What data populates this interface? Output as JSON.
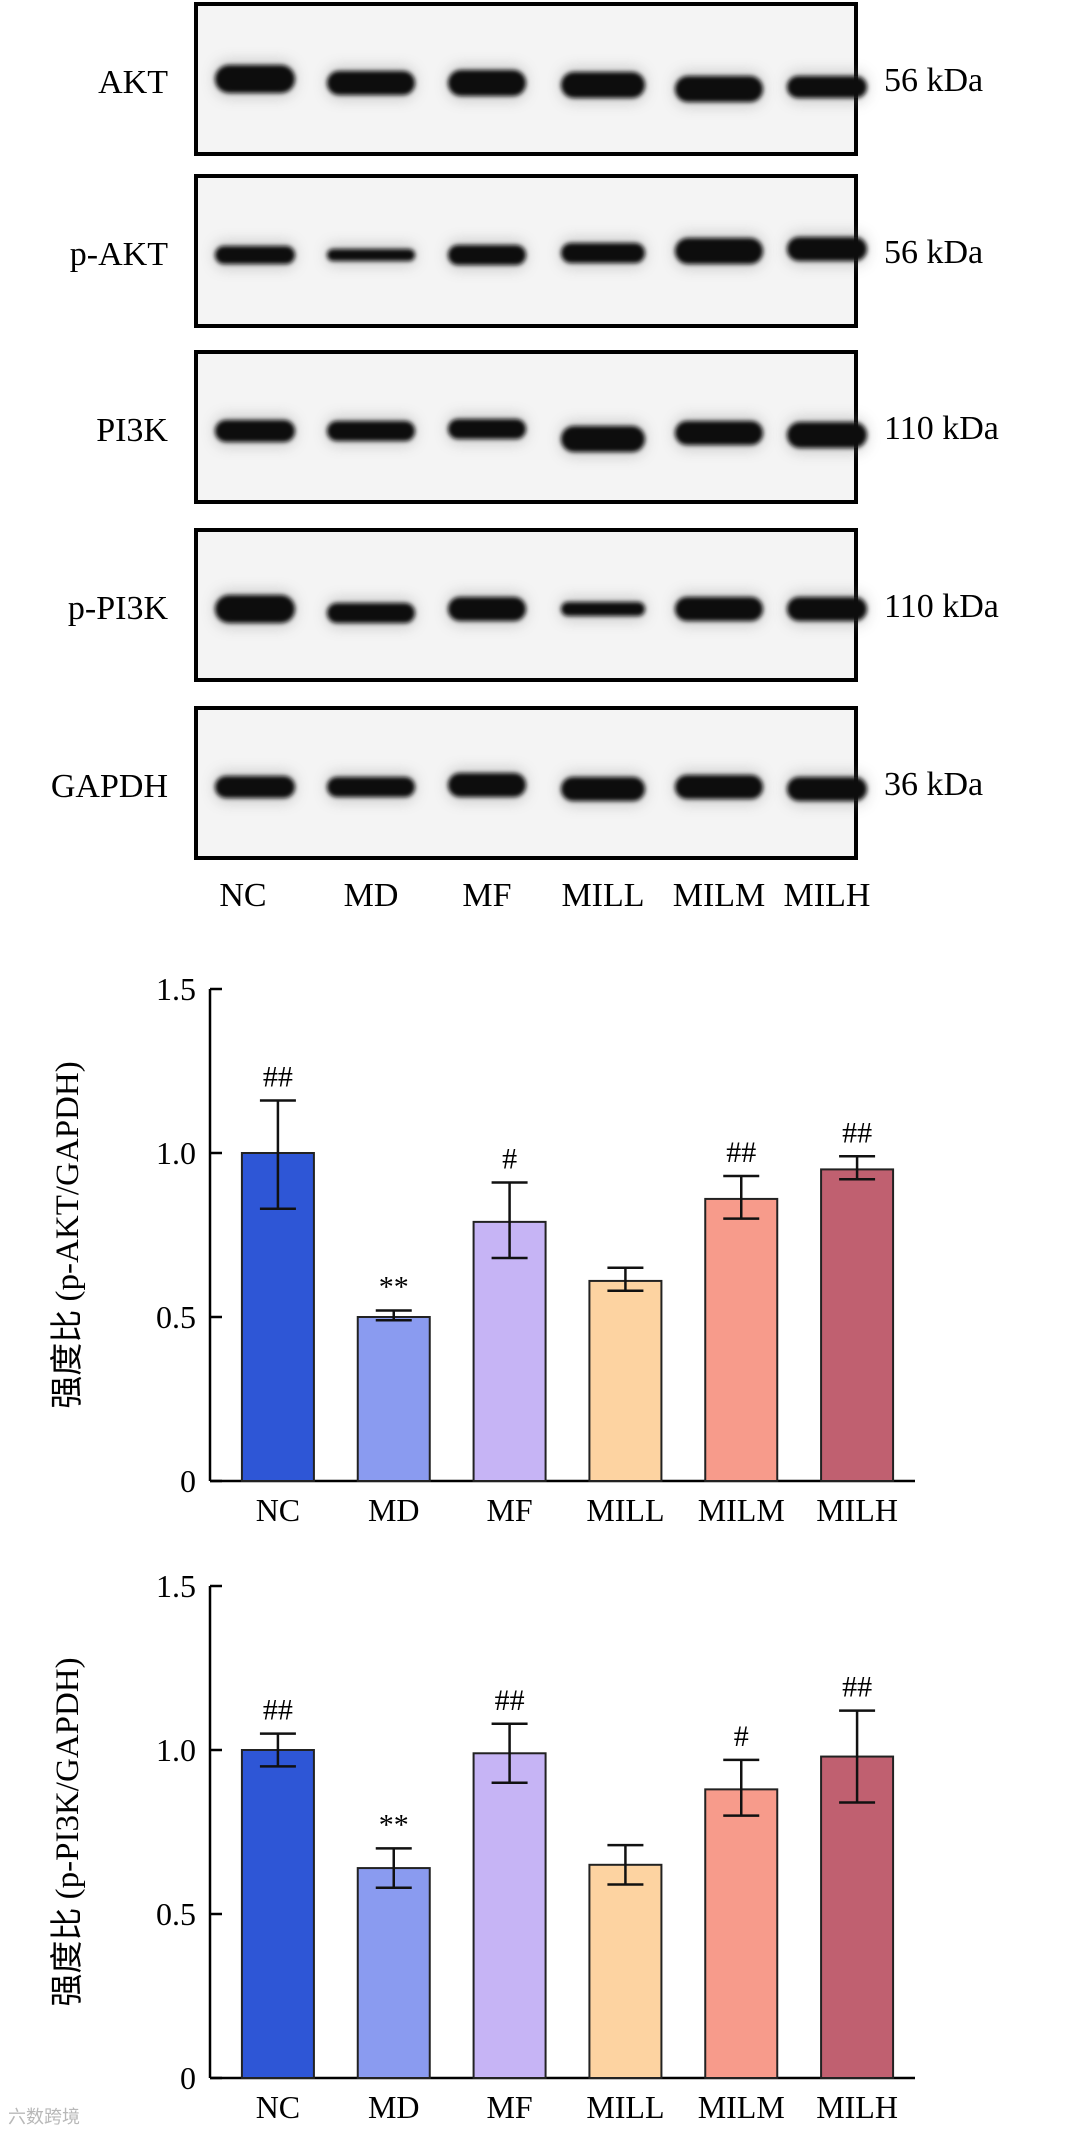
{
  "blots": {
    "lanes": [
      "NC",
      "MD",
      "MF",
      "MILL",
      "MILM",
      "MILH"
    ],
    "panels": [
      {
        "protein": "AKT",
        "size": "56 kDa"
      },
      {
        "protein": "p-AKT",
        "size": "56 kDa"
      },
      {
        "protein": "PI3K",
        "size": "110 kDa"
      },
      {
        "protein": "p-PI3K",
        "size": "110 kDa"
      },
      {
        "protein": "GAPDH",
        "size": "36 kDa"
      }
    ]
  },
  "chart_data": [
    {
      "type": "bar",
      "categories": [
        "NC",
        "MD",
        "MF",
        "MILL",
        "MILM",
        "MILH"
      ],
      "values": [
        1.0,
        0.5,
        0.79,
        0.61,
        0.86,
        0.95
      ],
      "error_low": [
        0.83,
        0.49,
        0.68,
        0.58,
        0.8,
        0.92
      ],
      "error_high": [
        1.16,
        0.52,
        0.91,
        0.65,
        0.93,
        0.99
      ],
      "annotations": [
        "##",
        "**",
        "#",
        "",
        "##",
        "##"
      ],
      "colors": [
        "#2e56d6",
        "#8a9bf0",
        "#c6b4f5",
        "#fdd3a1",
        "#f79b8b",
        "#c06070"
      ],
      "ylabel": "强度比 (p-AKT/GAPDH)",
      "xlabel": "",
      "ylim": [
        0,
        1.5
      ],
      "yticks": [
        "0",
        "0.5",
        "1.0",
        "1.5"
      ]
    },
    {
      "type": "bar",
      "categories": [
        "NC",
        "MD",
        "MF",
        "MILL",
        "MILM",
        "MILH"
      ],
      "values": [
        1.0,
        0.64,
        0.99,
        0.65,
        0.88,
        0.98
      ],
      "error_low": [
        0.95,
        0.58,
        0.9,
        0.59,
        0.8,
        0.84
      ],
      "error_high": [
        1.05,
        0.7,
        1.08,
        0.71,
        0.97,
        1.12
      ],
      "annotations": [
        "##",
        "**",
        "##",
        "",
        "#",
        "##"
      ],
      "colors": [
        "#2e56d6",
        "#8a9bf0",
        "#c6b4f5",
        "#fdd3a1",
        "#f79b8b",
        "#c06070"
      ],
      "ylabel": "强度比 (p-PI3K/GAPDH)",
      "xlabel": "",
      "ylim": [
        0,
        1.5
      ],
      "yticks": [
        "0",
        "0.5",
        "1.0",
        "1.5"
      ]
    }
  ],
  "watermark": "六数跨境"
}
